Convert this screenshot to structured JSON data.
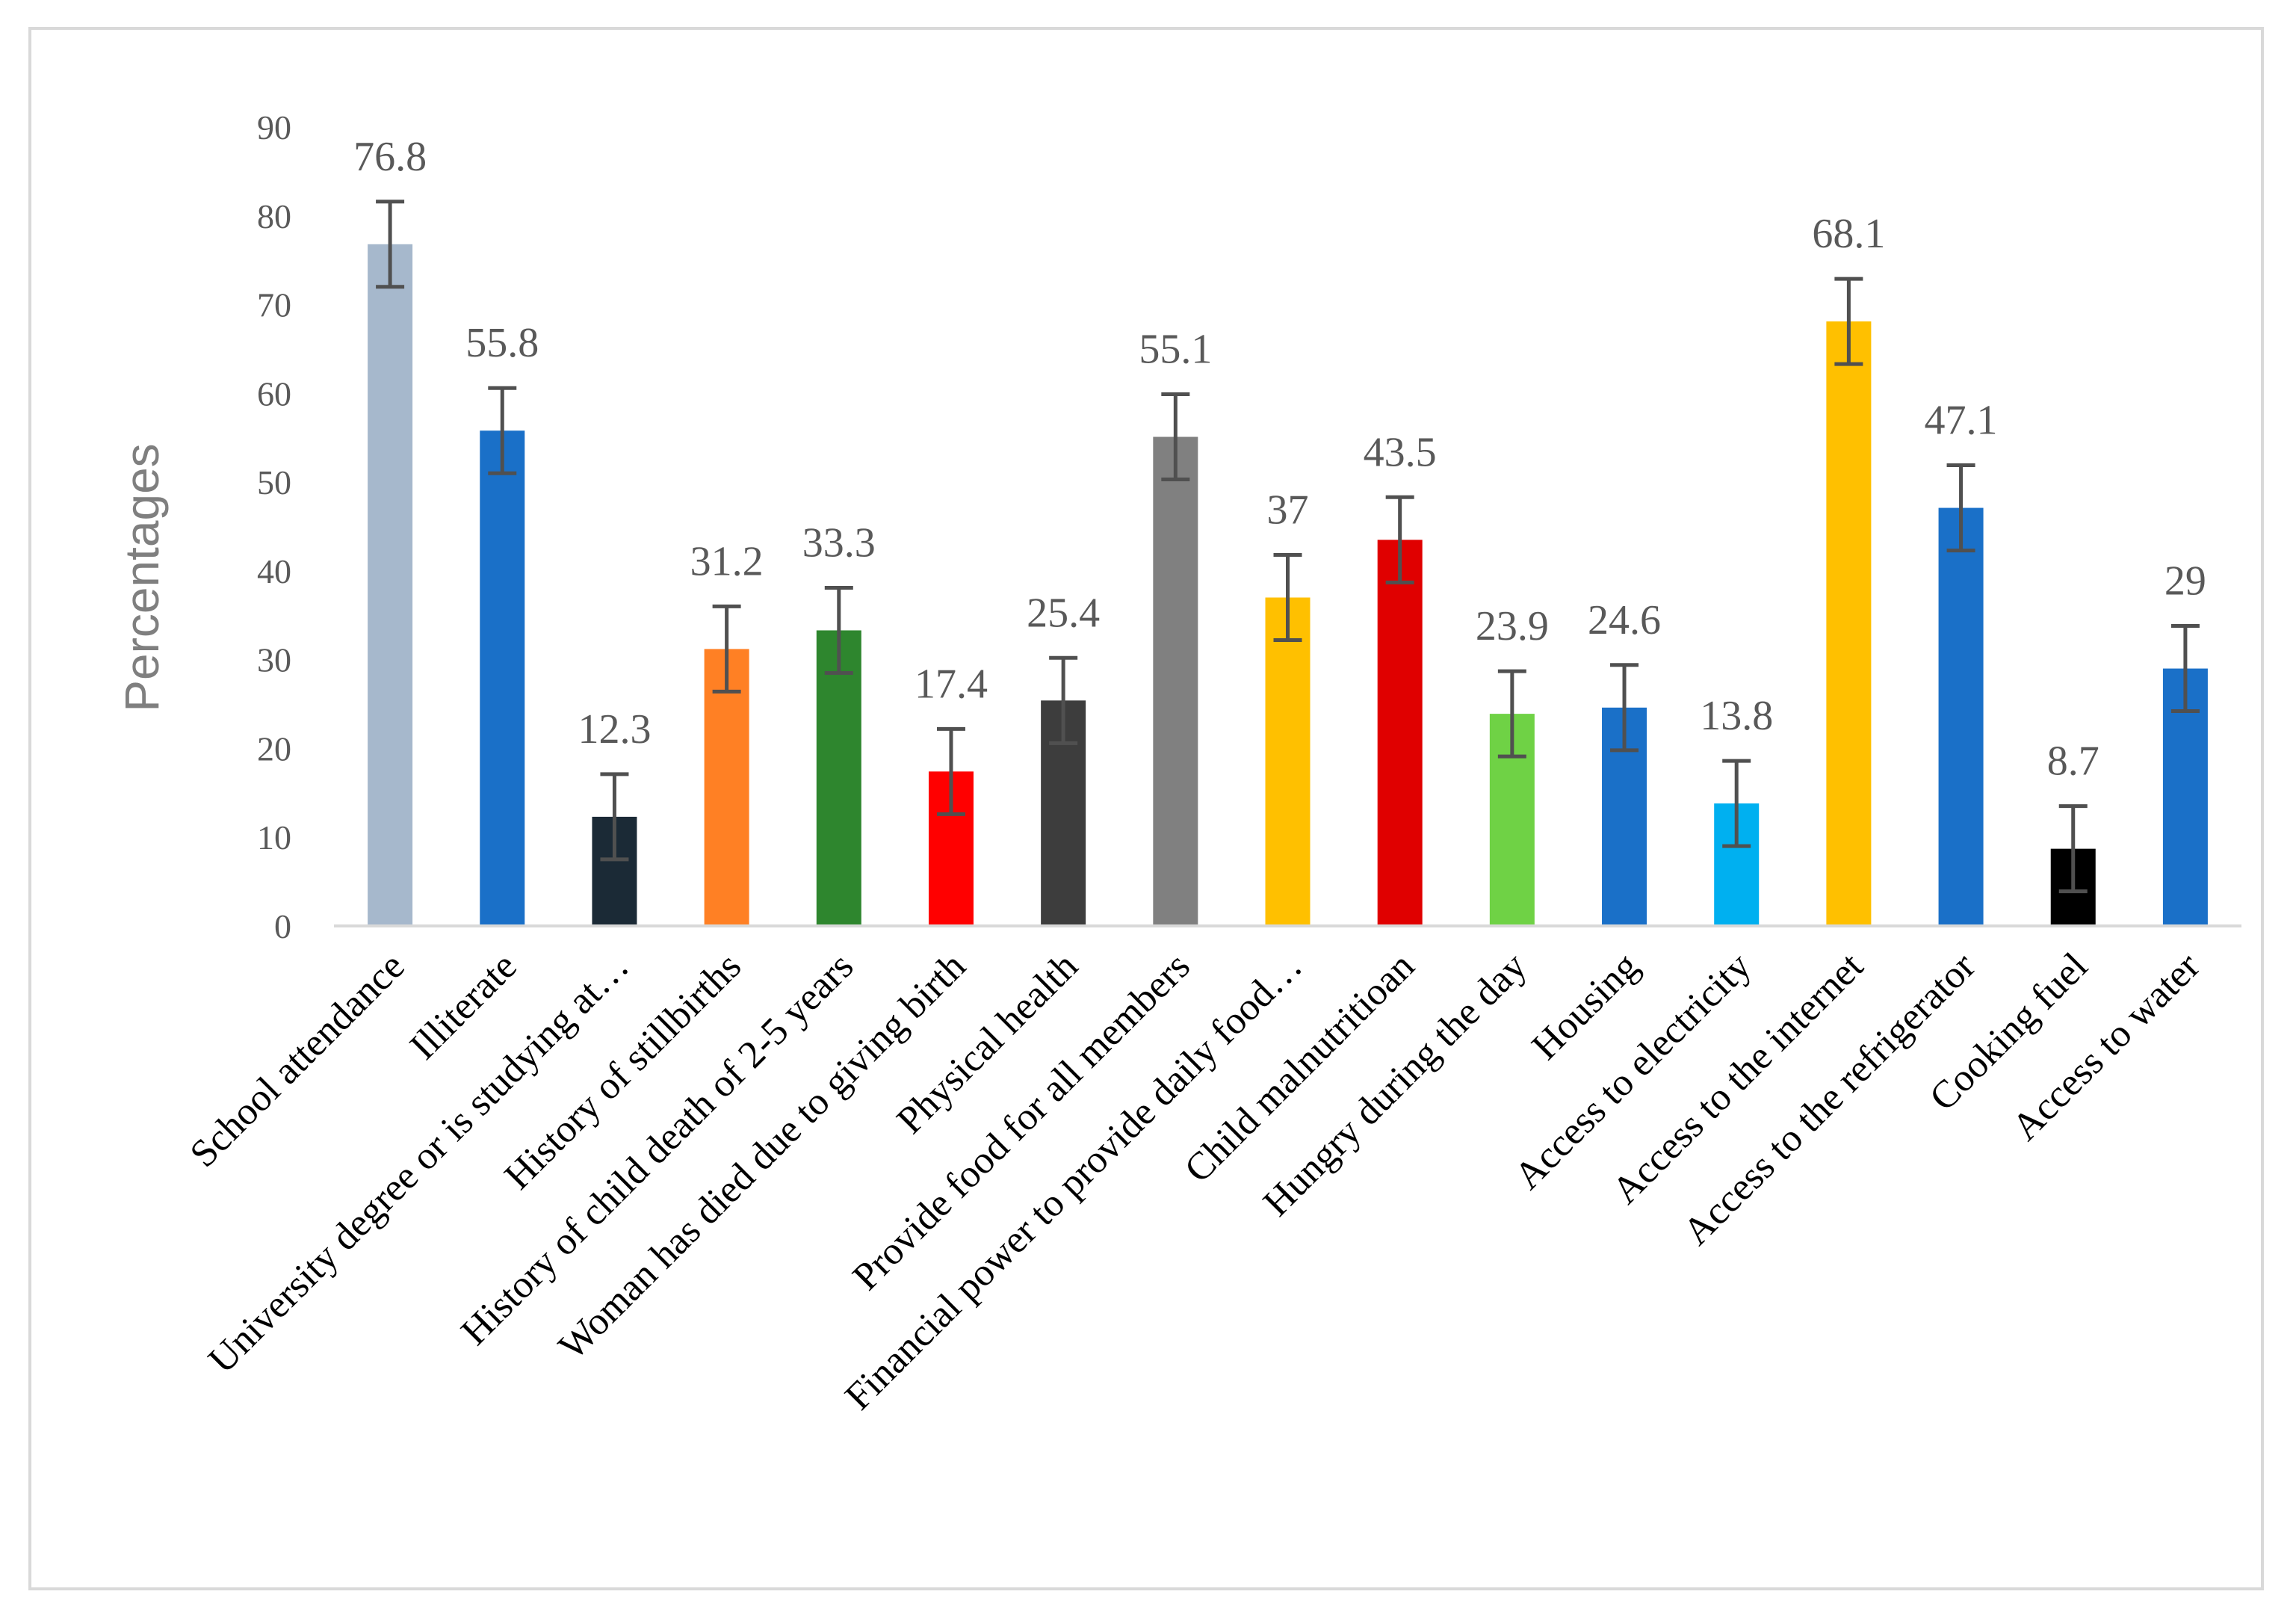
{
  "chart_data": {
    "type": "bar",
    "title": "",
    "xlabel": "",
    "ylabel": "Percentages",
    "ylim": [
      0,
      90
    ],
    "yticks": [
      "0",
      "10",
      "20",
      "30",
      "40",
      "50",
      "60",
      "70",
      "80",
      "90"
    ],
    "grid": false,
    "legend": "none",
    "error_bar_halfwidth": 4.8,
    "categories": [
      "School attendance",
      "Illiterate",
      "University degree or is studying at…",
      "History of stillbirths",
      "History of child death of 2-5 years",
      "Woman has died due to giving birth",
      "Physical health",
      "Provide food for all  members",
      "Financial power to provide daily food…",
      "Child malnutritioan",
      "Hungry during the day",
      "Housing",
      "Access to electricity",
      "Access to the internet",
      "Access to the refrigerator",
      "Cooking fuel",
      "Access to water"
    ],
    "values": [
      76.8,
      55.8,
      12.3,
      31.2,
      33.3,
      17.4,
      25.4,
      55.1,
      37,
      43.5,
      23.9,
      24.6,
      13.8,
      68.1,
      47.1,
      8.7,
      29
    ],
    "value_labels": [
      "76.8",
      "55.8",
      "12.3",
      "31.2",
      "33.3",
      "17.4",
      "25.4",
      "55.1",
      "37",
      "43.5",
      "23.9",
      "24.6",
      "13.8",
      "68.1",
      "47.1",
      "8.7",
      "29"
    ],
    "colors": [
      "#a6b8cc",
      "#1a70c8",
      "#1b2a36",
      "#ff8024",
      "#2e862e",
      "#ff0000",
      "#3d3d3d",
      "#808080",
      "#ffc000",
      "#e00000",
      "#6fd245",
      "#1a70c8",
      "#00b0f0",
      "#ffc000",
      "#1a70c8",
      "#000000",
      "#1a70c8"
    ]
  }
}
